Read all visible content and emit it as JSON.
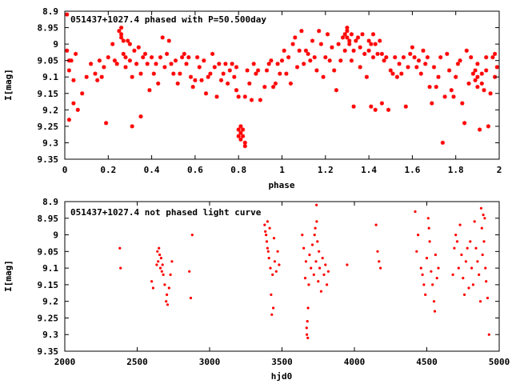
{
  "colors": {
    "points": "#ff0000",
    "frame": "#000000"
  },
  "chart_data": [
    {
      "type": "scatter",
      "title": "051437+1027.4 phased with P=50.500day",
      "xlabel": "phase",
      "ylabel": "I[mag]",
      "xlim": [
        0,
        2
      ],
      "ylim": [
        9.35,
        8.9
      ],
      "y_inverted": true,
      "marker": "star",
      "xticks": [
        "0",
        "0.2",
        "0.4",
        "0.6",
        "0.8",
        "1",
        "1.2",
        "1.4",
        "1.6",
        "1.8",
        "2"
      ],
      "yticks": [
        "8.9",
        "8.95",
        "9",
        "9.05",
        "9.1",
        "9.15",
        "9.2",
        "9.25",
        "9.3",
        "9.35"
      ],
      "points": [
        [
          0.01,
          8.91
        ],
        [
          0.01,
          9.02
        ],
        [
          0.02,
          9.05
        ],
        [
          0.02,
          9.08
        ],
        [
          0.02,
          9.23
        ],
        [
          0.03,
          9.05
        ],
        [
          0.04,
          9.11
        ],
        [
          0.04,
          9.18
        ],
        [
          0.05,
          9.03
        ],
        [
          0.06,
          9.2
        ],
        [
          0.08,
          9.15
        ],
        [
          0.1,
          9.1
        ],
        [
          0.12,
          9.06
        ],
        [
          0.14,
          9.09
        ],
        [
          0.15,
          9.11
        ],
        [
          0.16,
          9.05
        ],
        [
          0.17,
          9.1
        ],
        [
          0.18,
          9.07
        ],
        [
          0.19,
          9.24
        ],
        [
          0.2,
          9.04
        ],
        [
          0.22,
          9.0
        ],
        [
          0.23,
          9.05
        ],
        [
          0.24,
          9.06
        ],
        [
          0.25,
          8.96
        ],
        [
          0.26,
          8.95
        ],
        [
          0.26,
          8.97
        ],
        [
          0.26,
          8.98
        ],
        [
          0.27,
          8.99
        ],
        [
          0.27,
          9.03
        ],
        [
          0.28,
          9.04
        ],
        [
          0.28,
          9.07
        ],
        [
          0.29,
          8.99
        ],
        [
          0.3,
          9.0
        ],
        [
          0.3,
          9.05
        ],
        [
          0.31,
          9.1
        ],
        [
          0.31,
          9.25
        ],
        [
          0.32,
          9.02
        ],
        [
          0.33,
          9.06
        ],
        [
          0.34,
          9.01
        ],
        [
          0.35,
          9.09
        ],
        [
          0.35,
          9.22
        ],
        [
          0.36,
          9.04
        ],
        [
          0.37,
          9.03
        ],
        [
          0.38,
          9.06
        ],
        [
          0.39,
          9.14
        ],
        [
          0.4,
          9.04
        ],
        [
          0.41,
          9.09
        ],
        [
          0.42,
          9.06
        ],
        [
          0.43,
          9.12
        ],
        [
          0.44,
          9.04
        ],
        [
          0.45,
          8.98
        ],
        [
          0.46,
          9.07
        ],
        [
          0.47,
          9.03
        ],
        [
          0.48,
          8.99
        ],
        [
          0.49,
          9.06
        ],
        [
          0.5,
          9.09
        ],
        [
          0.51,
          9.05
        ],
        [
          0.52,
          9.12
        ],
        [
          0.53,
          9.09
        ],
        [
          0.54,
          9.04
        ],
        [
          0.55,
          9.03
        ],
        [
          0.56,
          9.06
        ],
        [
          0.57,
          9.04
        ],
        [
          0.58,
          9.1
        ],
        [
          0.59,
          9.13
        ],
        [
          0.6,
          9.11
        ],
        [
          0.61,
          9.04
        ],
        [
          0.62,
          9.07
        ],
        [
          0.63,
          9.11
        ],
        [
          0.64,
          9.05
        ],
        [
          0.65,
          9.15
        ],
        [
          0.66,
          9.1
        ],
        [
          0.67,
          9.09
        ],
        [
          0.68,
          9.03
        ],
        [
          0.69,
          9.07
        ],
        [
          0.7,
          9.16
        ],
        [
          0.71,
          9.06
        ],
        [
          0.72,
          9.11
        ],
        [
          0.73,
          9.09
        ],
        [
          0.74,
          9.06
        ],
        [
          0.75,
          9.12
        ],
        [
          0.76,
          9.08
        ],
        [
          0.77,
          9.06
        ],
        [
          0.78,
          9.1
        ],
        [
          0.79,
          9.07
        ],
        [
          0.79,
          9.14
        ],
        [
          0.8,
          9.16
        ],
        [
          0.8,
          9.26
        ],
        [
          0.8,
          9.28
        ],
        [
          0.81,
          9.25
        ],
        [
          0.81,
          9.27
        ],
        [
          0.81,
          9.29
        ],
        [
          0.82,
          9.26
        ],
        [
          0.82,
          9.28
        ],
        [
          0.83,
          9.3
        ],
        [
          0.83,
          9.31
        ],
        [
          0.83,
          9.16
        ],
        [
          0.84,
          9.08
        ],
        [
          0.85,
          9.12
        ],
        [
          0.86,
          9.17
        ],
        [
          0.87,
          9.06
        ],
        [
          0.88,
          9.09
        ],
        [
          0.89,
          9.08
        ],
        [
          0.9,
          9.17
        ],
        [
          0.92,
          9.13
        ],
        [
          0.93,
          9.08
        ],
        [
          0.94,
          9.06
        ],
        [
          0.95,
          9.05
        ],
        [
          0.96,
          9.13
        ],
        [
          0.97,
          9.12
        ],
        [
          0.98,
          9.06
        ],
        [
          0.99,
          9.09
        ],
        [
          1.0,
          9.05
        ],
        [
          1.01,
          9.02
        ],
        [
          1.02,
          9.09
        ],
        [
          1.03,
          9.04
        ],
        [
          1.04,
          9.12
        ],
        [
          1.05,
          9.0
        ],
        [
          1.06,
          8.98
        ],
        [
          1.07,
          9.07
        ],
        [
          1.08,
          9.02
        ],
        [
          1.09,
          8.96
        ],
        [
          1.1,
          9.06
        ],
        [
          1.11,
          9.02
        ],
        [
          1.12,
          9.03
        ],
        [
          1.13,
          9.05
        ],
        [
          1.14,
          8.99
        ],
        [
          1.15,
          9.04
        ],
        [
          1.16,
          9.08
        ],
        [
          1.17,
          8.96
        ],
        [
          1.18,
          9.0
        ],
        [
          1.19,
          9.1
        ],
        [
          1.2,
          9.04
        ],
        [
          1.21,
          8.97
        ],
        [
          1.22,
          9.05
        ],
        [
          1.23,
          9.01
        ],
        [
          1.24,
          9.08
        ],
        [
          1.25,
          9.14
        ],
        [
          1.26,
          9.0
        ],
        [
          1.27,
          9.05
        ],
        [
          1.28,
          8.98
        ],
        [
          1.29,
          8.97
        ],
        [
          1.29,
          9.02
        ],
        [
          1.3,
          8.95
        ],
        [
          1.3,
          8.96
        ],
        [
          1.3,
          8.98
        ],
        [
          1.31,
          8.99
        ],
        [
          1.31,
          9.0
        ],
        [
          1.32,
          8.97
        ],
        [
          1.32,
          9.05
        ],
        [
          1.33,
          9.02
        ],
        [
          1.33,
          9.19
        ],
        [
          1.34,
          8.99
        ],
        [
          1.35,
          8.98
        ],
        [
          1.36,
          9.01
        ],
        [
          1.36,
          9.07
        ],
        [
          1.37,
          8.97
        ],
        [
          1.38,
          9.03
        ],
        [
          1.39,
          9.1
        ],
        [
          1.4,
          8.99
        ],
        [
          1.4,
          9.02
        ],
        [
          1.41,
          9.0
        ],
        [
          1.41,
          9.19
        ],
        [
          1.42,
          8.97
        ],
        [
          1.42,
          9.04
        ],
        [
          1.43,
          9.0
        ],
        [
          1.43,
          9.2
        ],
        [
          1.44,
          9.03
        ],
        [
          1.45,
          8.99
        ],
        [
          1.46,
          9.03
        ],
        [
          1.46,
          9.18
        ],
        [
          1.47,
          9.05
        ],
        [
          1.48,
          9.04
        ],
        [
          1.49,
          9.2
        ],
        [
          1.5,
          9.08
        ],
        [
          1.51,
          9.09
        ],
        [
          1.52,
          9.04
        ],
        [
          1.53,
          9.1
        ],
        [
          1.54,
          9.06
        ],
        [
          1.55,
          9.09
        ],
        [
          1.56,
          9.04
        ],
        [
          1.57,
          9.19
        ],
        [
          1.58,
          9.07
        ],
        [
          1.59,
          9.03
        ],
        [
          1.6,
          9.01
        ],
        [
          1.61,
          9.04
        ],
        [
          1.62,
          9.07
        ],
        [
          1.63,
          9.05
        ],
        [
          1.64,
          9.09
        ],
        [
          1.65,
          9.02
        ],
        [
          1.66,
          9.06
        ],
        [
          1.67,
          9.04
        ],
        [
          1.68,
          9.13
        ],
        [
          1.69,
          9.18
        ],
        [
          1.7,
          9.07
        ],
        [
          1.71,
          9.13
        ],
        [
          1.72,
          9.1
        ],
        [
          1.73,
          9.04
        ],
        [
          1.74,
          9.3
        ],
        [
          1.75,
          9.16
        ],
        [
          1.76,
          9.03
        ],
        [
          1.77,
          9.08
        ],
        [
          1.78,
          9.14
        ],
        [
          1.79,
          9.16
        ],
        [
          1.8,
          9.1
        ],
        [
          1.81,
          9.06
        ],
        [
          1.82,
          9.05
        ],
        [
          1.83,
          9.18
        ],
        [
          1.84,
          9.24
        ],
        [
          1.85,
          9.02
        ],
        [
          1.86,
          9.12
        ],
        [
          1.87,
          9.04
        ],
        [
          1.88,
          9.09
        ],
        [
          1.89,
          9.08
        ],
        [
          1.89,
          9.11
        ],
        [
          1.9,
          9.06
        ],
        [
          1.9,
          9.1
        ],
        [
          1.9,
          9.13
        ],
        [
          1.91,
          9.26
        ],
        [
          1.92,
          9.09
        ],
        [
          1.92,
          9.12
        ],
        [
          1.93,
          9.14
        ],
        [
          1.94,
          9.04
        ],
        [
          1.94,
          9.08
        ],
        [
          1.95,
          9.25
        ],
        [
          1.96,
          9.15
        ],
        [
          1.97,
          9.04
        ],
        [
          1.98,
          9.1
        ],
        [
          1.98,
          9.03
        ],
        [
          1.99,
          9.07
        ]
      ]
    },
    {
      "type": "scatter",
      "title": "051437+1027.4 not phased light curve",
      "xlabel": "hjd0",
      "ylabel": "I[mag]",
      "xlim": [
        2000,
        5000
      ],
      "ylim": [
        9.35,
        8.9
      ],
      "y_inverted": true,
      "marker": "dot",
      "xticks": [
        "2000",
        "2500",
        "3000",
        "3500",
        "4000",
        "4500",
        "5000"
      ],
      "yticks": [
        "8.9",
        "8.95",
        "9",
        "9.05",
        "9.1",
        "9.15",
        "9.2",
        "9.25",
        "9.3",
        "9.35"
      ],
      "points": [
        [
          2380,
          9.04
        ],
        [
          2385,
          9.1
        ],
        [
          2600,
          9.14
        ],
        [
          2610,
          9.16
        ],
        [
          2635,
          9.09
        ],
        [
          2640,
          9.05
        ],
        [
          2645,
          9.08
        ],
        [
          2650,
          9.04
        ],
        [
          2655,
          9.06
        ],
        [
          2660,
          9.1
        ],
        [
          2665,
          9.07
        ],
        [
          2670,
          9.11
        ],
        [
          2675,
          9.09
        ],
        [
          2680,
          9.12
        ],
        [
          2690,
          9.15
        ],
        [
          2700,
          9.2
        ],
        [
          2705,
          9.18
        ],
        [
          2710,
          9.21
        ],
        [
          2720,
          9.16
        ],
        [
          2730,
          9.12
        ],
        [
          2740,
          9.08
        ],
        [
          2860,
          9.11
        ],
        [
          2870,
          9.19
        ],
        [
          2880,
          9.0
        ],
        [
          3380,
          8.97
        ],
        [
          3385,
          8.99
        ],
        [
          3390,
          9.0
        ],
        [
          3395,
          9.02
        ],
        [
          3400,
          8.96
        ],
        [
          3400,
          9.04
        ],
        [
          3405,
          9.05
        ],
        [
          3410,
          9.07
        ],
        [
          3415,
          8.98
        ],
        [
          3420,
          9.1
        ],
        [
          3425,
          9.18
        ],
        [
          3430,
          9.24
        ],
        [
          3435,
          9.12
        ],
        [
          3440,
          9.22
        ],
        [
          3445,
          9.01
        ],
        [
          3450,
          9.08
        ],
        [
          3460,
          9.11
        ],
        [
          3470,
          9.05
        ],
        [
          3480,
          9.09
        ],
        [
          3640,
          9.0
        ],
        [
          3650,
          9.04
        ],
        [
          3660,
          9.13
        ],
        [
          3665,
          9.08
        ],
        [
          3670,
          9.28
        ],
        [
          3672,
          9.3
        ],
        [
          3675,
          9.26
        ],
        [
          3678,
          9.31
        ],
        [
          3680,
          9.22
        ],
        [
          3685,
          9.15
        ],
        [
          3690,
          9.06
        ],
        [
          3700,
          9.1
        ],
        [
          3710,
          9.03
        ],
        [
          3720,
          9.12
        ],
        [
          3725,
          9.0
        ],
        [
          3730,
          8.98
        ],
        [
          3735,
          9.08
        ],
        [
          3738,
          8.91
        ],
        [
          3740,
          8.96
        ],
        [
          3745,
          9.02
        ],
        [
          3750,
          9.14
        ],
        [
          3755,
          9.05
        ],
        [
          3760,
          9.1
        ],
        [
          3770,
          9.17
        ],
        [
          3780,
          9.07
        ],
        [
          3790,
          9.12
        ],
        [
          3800,
          9.09
        ],
        [
          3810,
          9.15
        ],
        [
          3820,
          9.11
        ],
        [
          3950,
          9.09
        ],
        [
          4150,
          8.97
        ],
        [
          4160,
          9.05
        ],
        [
          4170,
          9.08
        ],
        [
          4180,
          9.1
        ],
        [
          4420,
          8.93
        ],
        [
          4430,
          9.05
        ],
        [
          4440,
          9.0
        ],
        [
          4460,
          9.1
        ],
        [
          4470,
          9.12
        ],
        [
          4480,
          9.15
        ],
        [
          4490,
          9.18
        ],
        [
          4500,
          9.07
        ],
        [
          4510,
          8.95
        ],
        [
          4515,
          8.98
        ],
        [
          4520,
          9.02
        ],
        [
          4530,
          9.11
        ],
        [
          4540,
          9.15
        ],
        [
          4550,
          9.2
        ],
        [
          4555,
          9.23
        ],
        [
          4560,
          9.06
        ],
        [
          4570,
          9.13
        ],
        [
          4580,
          9.1
        ],
        [
          4680,
          9.12
        ],
        [
          4690,
          9.04
        ],
        [
          4700,
          9.0
        ],
        [
          4710,
          9.02
        ],
        [
          4720,
          9.1
        ],
        [
          4730,
          8.97
        ],
        [
          4740,
          9.06
        ],
        [
          4750,
          9.13
        ],
        [
          4760,
          9.18
        ],
        [
          4770,
          9.08
        ],
        [
          4780,
          9.04
        ],
        [
          4790,
          9.16
        ],
        [
          4800,
          9.02
        ],
        [
          4810,
          9.1
        ],
        [
          4820,
          9.15
        ],
        [
          4830,
          8.96
        ],
        [
          4840,
          9.04
        ],
        [
          4850,
          9.08
        ],
        [
          4860,
          9.12
        ],
        [
          4870,
          9.2
        ],
        [
          4875,
          8.92
        ],
        [
          4880,
          8.98
        ],
        [
          4885,
          9.06
        ],
        [
          4890,
          8.94
        ],
        [
          4895,
          9.02
        ],
        [
          4900,
          8.95
        ],
        [
          4905,
          9.1
        ],
        [
          4910,
          9.14
        ],
        [
          4920,
          9.19
        ],
        [
          4930,
          9.3
        ]
      ]
    }
  ]
}
